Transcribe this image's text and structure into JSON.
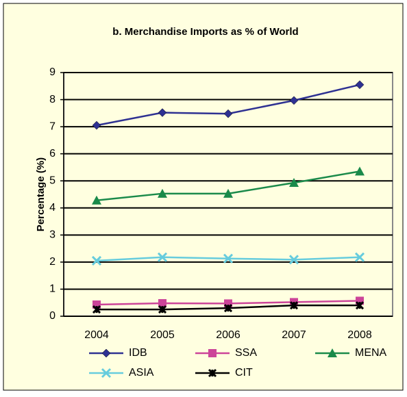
{
  "chart_data": {
    "type": "line",
    "title": "b. Merchandise  Imports as % of World",
    "y_label": "Percentage (%)",
    "categories": [
      "2004",
      "2005",
      "2006",
      "2007",
      "2008"
    ],
    "series": [
      {
        "name": "IDB",
        "color": "#2e3192",
        "marker": "diamond",
        "values": [
          7.05,
          7.52,
          7.48,
          7.97,
          8.55
        ]
      },
      {
        "name": "SSA",
        "color": "#cc4499",
        "marker": "square",
        "values": [
          0.43,
          0.48,
          0.47,
          0.52,
          0.57
        ]
      },
      {
        "name": "MENA",
        "color": "#1a8a4a",
        "marker": "triangle",
        "values": [
          4.28,
          4.53,
          4.53,
          4.93,
          5.35
        ]
      },
      {
        "name": "ASIA",
        "color": "#66ccdd",
        "marker": "cross",
        "values": [
          2.05,
          2.18,
          2.13,
          2.09,
          2.18
        ]
      },
      {
        "name": "CIT",
        "color": "#000000",
        "marker": "x",
        "values": [
          0.25,
          0.25,
          0.3,
          0.4,
          0.4
        ]
      }
    ],
    "ylim": [
      0,
      9
    ],
    "yticks": [
      0,
      1,
      2,
      3,
      4,
      5,
      6,
      7,
      8,
      9
    ],
    "grid": true,
    "legend": "bottom"
  }
}
